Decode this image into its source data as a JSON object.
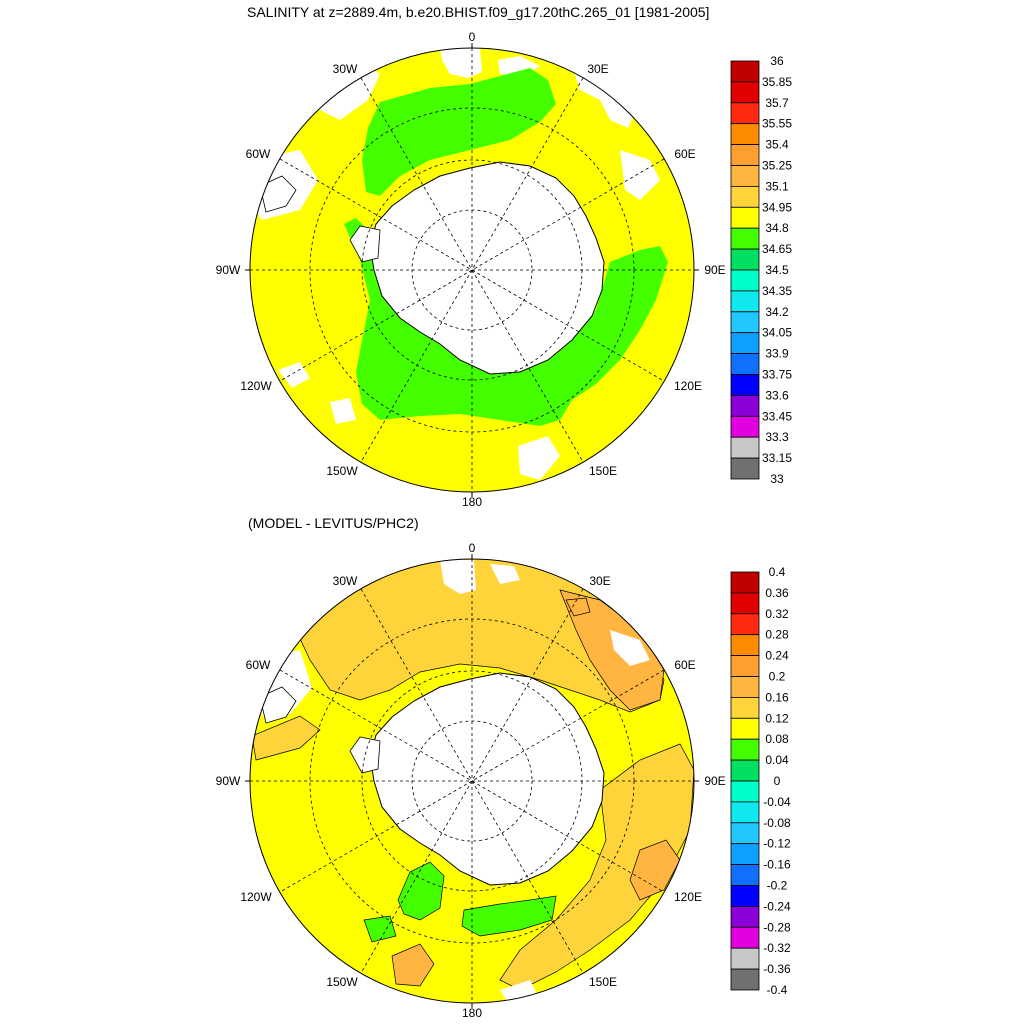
{
  "top_panel": {
    "title": "SALINITY at z=2889.4m, b.e20.BHIST.f09_g17.20thC.265_01 [1981-2005]",
    "lon_labels": [
      "0",
      "30E",
      "60E",
      "90E",
      "120E",
      "150E",
      "180",
      "150W",
      "120W",
      "90W",
      "60W",
      "30W"
    ],
    "colorbar": {
      "levels": [
        "36",
        "35.85",
        "35.7",
        "35.55",
        "35.4",
        "35.25",
        "35.1",
        "34.95",
        "34.8",
        "34.65",
        "34.5",
        "34.35",
        "34.2",
        "34.05",
        "33.9",
        "33.75",
        "33.6",
        "33.45",
        "33.3",
        "33.15",
        "33"
      ],
      "colors": [
        "#c00000",
        "#e00000",
        "#ff2a10",
        "#ff8c00",
        "#ff9f30",
        "#ffb540",
        "#ffd43a",
        "#ffff00",
        "#44ff00",
        "#00e060",
        "#00ffc8",
        "#10e8f0",
        "#20c8ff",
        "#10a0ff",
        "#1070ff",
        "#0000ff",
        "#8c00d8",
        "#e000e0",
        "#c8c8c8",
        "#707070"
      ]
    },
    "fields": {
      "ocean": "#ffff00",
      "shelf": "#44ff00"
    }
  },
  "bottom_panel": {
    "title": "(MODEL - LEVITUS/PHC2)",
    "lon_labels": [
      "0",
      "30E",
      "60E",
      "90E",
      "120E",
      "150E",
      "180",
      "150W",
      "120W",
      "90W",
      "60W",
      "30W"
    ],
    "colorbar": {
      "levels": [
        "0.4",
        "0.36",
        "0.32",
        "0.28",
        "0.24",
        "0.2",
        "0.16",
        "0.12",
        "0.08",
        "0.04",
        "0",
        "-0.04",
        "-0.08",
        "-0.12",
        "-0.16",
        "-0.2",
        "-0.24",
        "-0.28",
        "-0.32",
        "-0.36",
        "-0.4"
      ],
      "colors": [
        "#c00000",
        "#e00000",
        "#ff2a10",
        "#ff8c00",
        "#ff9f30",
        "#ffb540",
        "#ffd43a",
        "#ffff00",
        "#44ff00",
        "#00e060",
        "#00ffc8",
        "#10e8f0",
        "#20c8ff",
        "#10a0ff",
        "#1070ff",
        "#0000ff",
        "#8c00d8",
        "#e000e0",
        "#c8c8c8",
        "#707070"
      ]
    },
    "fields": {
      "base": "#ffff00",
      "positive": "#ffd43a",
      "strong": "#ffb540",
      "shelf": "#44ff00"
    }
  }
}
